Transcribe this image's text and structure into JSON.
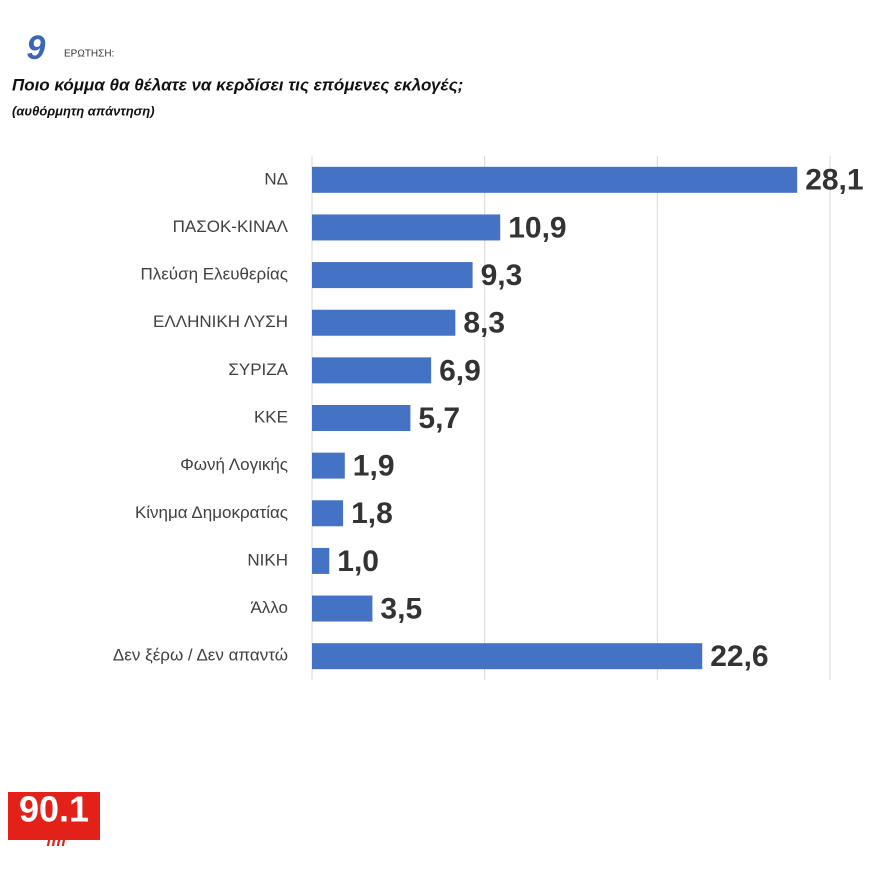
{
  "header": {
    "number": "9",
    "label": "ΕΡΩΤΗΣΗ:"
  },
  "chart_data": {
    "type": "bar",
    "orientation": "horizontal",
    "title": "Ποιο κόμμα θα θέλατε να κερδίσει τις επόμενες εκλογές;",
    "subtitle": "(αυθόρμητη απάντηση)",
    "categories": [
      "ΝΔ",
      "ΠΑΣΟΚ-ΚΙΝΑΛ",
      "Πλεύση Ελευθερίας",
      "ΕΛΛΗΝΙΚΗ ΛΥΣΗ",
      "ΣΥΡΙΖΑ",
      "ΚΚΕ",
      "Φωνή Λογικής",
      "Κίνημα Δημοκρατίας",
      "ΝΙΚΗ",
      "Άλλο",
      "Δεν ξέρω / Δεν απαντώ"
    ],
    "values": [
      28.1,
      10.9,
      9.3,
      8.3,
      6.9,
      5.7,
      1.9,
      1.8,
      1.0,
      3.5,
      22.6
    ],
    "value_labels": [
      "28,1",
      "10,9",
      "9,3",
      "8,3",
      "6,9",
      "5,7",
      "1,9",
      "1,8",
      "1,0",
      "3,5",
      "22,6"
    ],
    "color": "#4472c4",
    "xlim": [
      0,
      30
    ],
    "xticks": [
      0,
      10,
      20,
      30
    ],
    "grid": true
  },
  "logo": {
    "main": "90.1",
    "sub": "fm"
  }
}
